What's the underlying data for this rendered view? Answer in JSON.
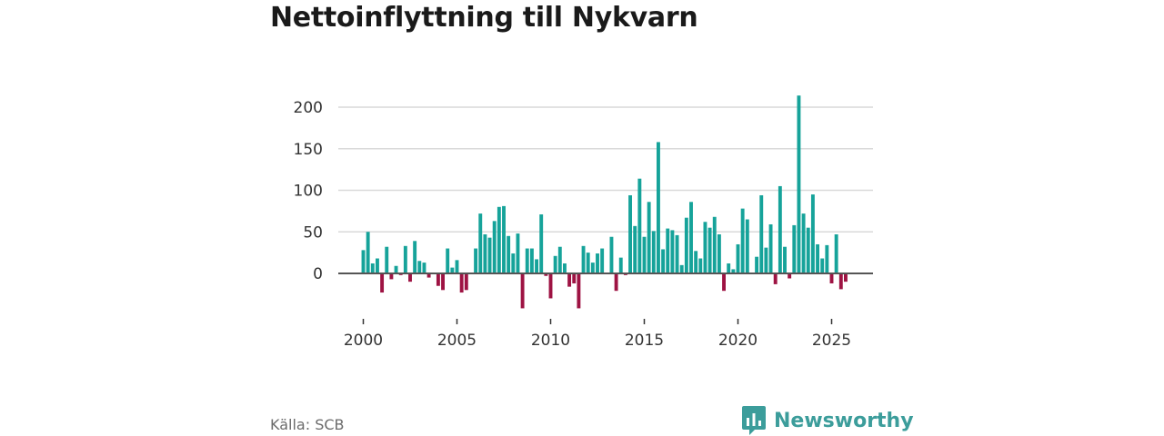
{
  "title": "Nettoinflyttning till Nykvarn",
  "source": "Källa: SCB",
  "brand": {
    "name": "Newsworthy"
  },
  "colors": {
    "positive": "#16a39a",
    "negative": "#9e1343",
    "brand": "#3c9d9b",
    "grid": "#d9d9d9",
    "zero": "#555555"
  },
  "chart_data": {
    "type": "bar",
    "title": "Nettoinflyttning till Nykvarn",
    "xlabel": "",
    "ylabel": "",
    "ylim": [
      -45,
      220
    ],
    "yticks": [
      200,
      150,
      100,
      50,
      0
    ],
    "xticks": [
      "2000",
      "2005",
      "2010",
      "2015",
      "2020",
      "2025"
    ],
    "period": "quarterly, 2000 Q1 – 2025 Q4",
    "values": [
      28,
      50,
      12,
      18,
      -23,
      32,
      -7,
      9,
      -2,
      33,
      -10,
      39,
      15,
      13,
      -5,
      0,
      -15,
      -20,
      30,
      7,
      16,
      -23,
      -20,
      0,
      30,
      72,
      47,
      43,
      63,
      80,
      81,
      45,
      24,
      48,
      -42,
      30,
      30,
      17,
      71,
      -3,
      -30,
      21,
      32,
      12,
      -16,
      -12,
      -42,
      33,
      25,
      13,
      24,
      30,
      0,
      44,
      -21,
      19,
      -2,
      94,
      57,
      114,
      44,
      86,
      51,
      158,
      29,
      54,
      52,
      46,
      10,
      67,
      86,
      27,
      18,
      62,
      55,
      68,
      47,
      -21,
      12,
      5,
      35,
      78,
      65,
      0,
      20,
      94,
      31,
      59,
      -13,
      105,
      32,
      -6,
      58,
      214,
      72,
      55,
      95,
      35,
      18,
      34,
      -12,
      47,
      -19,
      -10
    ]
  }
}
